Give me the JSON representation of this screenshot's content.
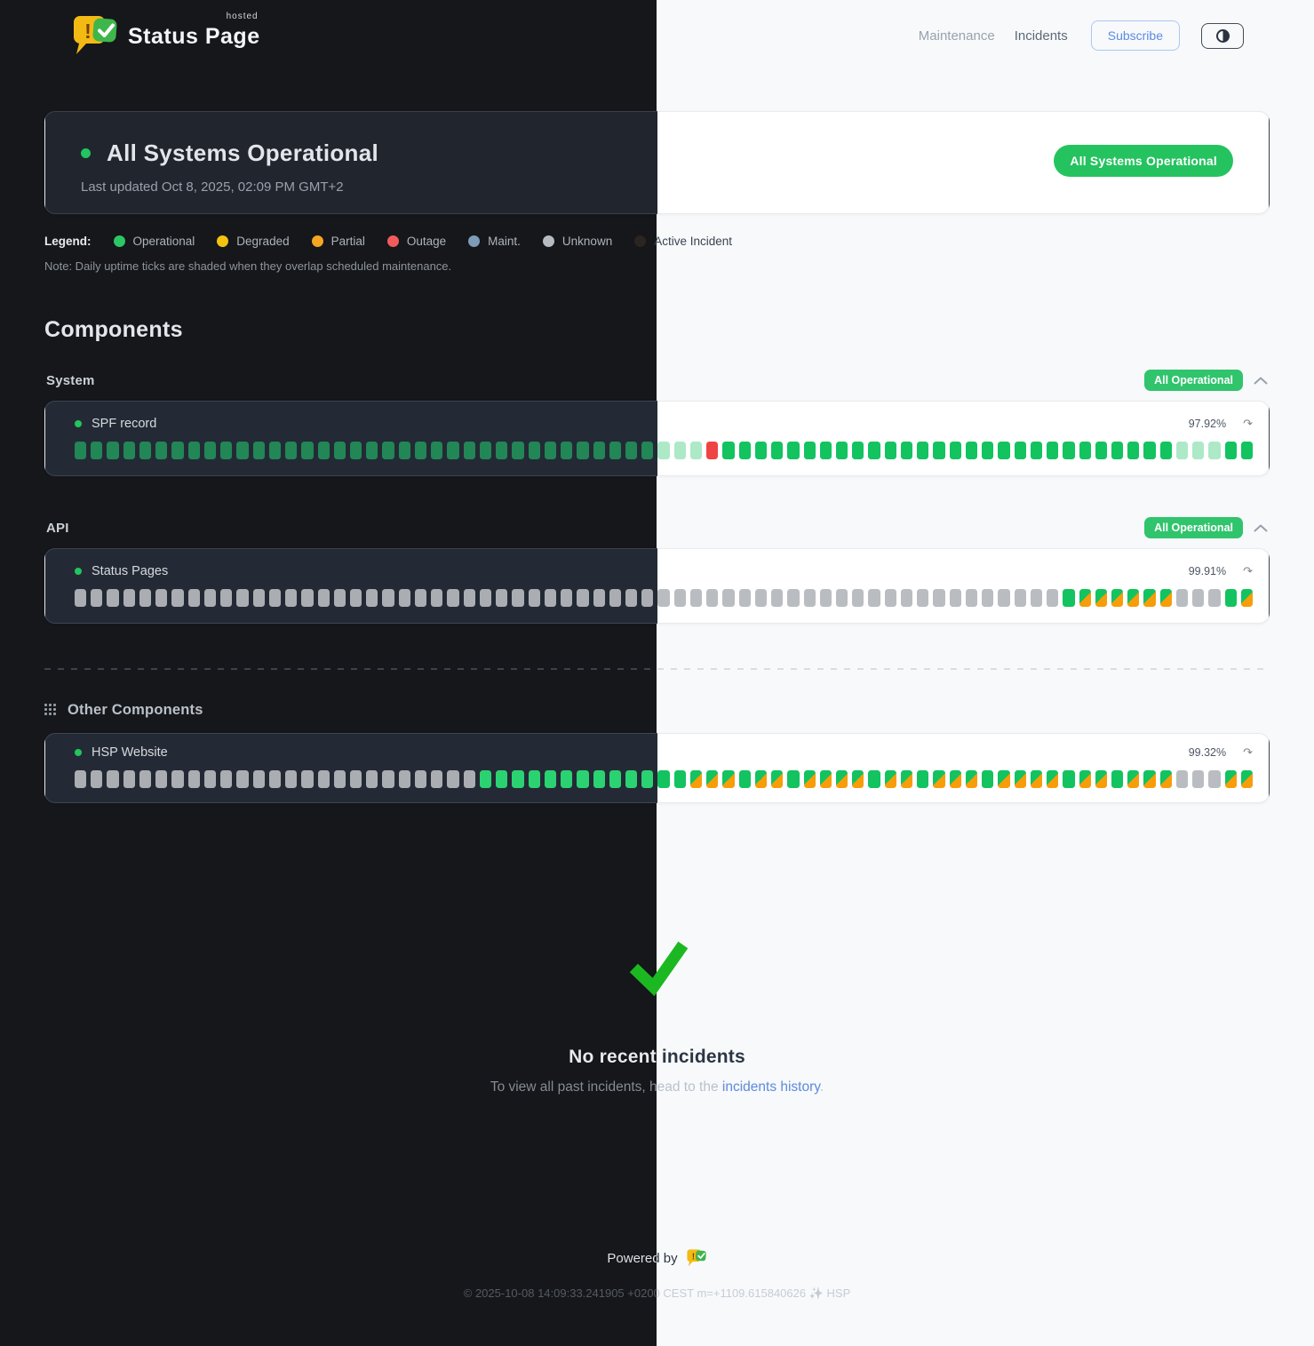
{
  "brand": {
    "name": "Status Page",
    "superscript": "hosted"
  },
  "nav": {
    "maintenance": "Maintenance",
    "incidents": "Incidents",
    "subscribe": "Subscribe"
  },
  "status": {
    "title": "All Systems Operational",
    "last_updated": "Last updated Oct 8, 2025, 02:09 PM GMT+2",
    "badge": "All Systems Operational"
  },
  "legend": {
    "label": "Legend:",
    "items": [
      {
        "label": "Operational",
        "color": "#2cc665"
      },
      {
        "label": "Degraded",
        "color": "#f2c40f"
      },
      {
        "label": "Partial",
        "color": "#f5a623"
      },
      {
        "label": "Outage",
        "color": "#f15b5b"
      },
      {
        "label": "Maint.",
        "color": "#7e9cb8"
      },
      {
        "label": "Unknown",
        "color": "#b7bcc2"
      },
      {
        "label": "Active Incident",
        "color": "#2a251f"
      }
    ],
    "note": "Note: Daily uptime ticks are shaded when they overlap scheduled maintenance."
  },
  "components": {
    "heading": "Components",
    "groups": [
      {
        "name": "System",
        "badge": "All Operational",
        "row": {
          "name": "SPF record",
          "uptime": "97.92%",
          "dark_green": "muted",
          "ticks": [
            [
              "operational",
              36
            ],
            [
              "shaded",
              3
            ],
            [
              "outage",
              1
            ],
            [
              "operational",
              28
            ],
            [
              "shaded",
              3
            ],
            [
              "operational",
              2
            ]
          ]
        }
      },
      {
        "name": "API",
        "badge": "All Operational",
        "row": {
          "name": "Status Pages",
          "uptime": "99.91%",
          "dark_green": "bright",
          "ticks": [
            [
              "unknown",
              61
            ],
            [
              "operational",
              1
            ],
            [
              "mixed",
              6
            ],
            [
              "unknown",
              3
            ],
            [
              "operational",
              1
            ],
            [
              "mixed",
              1
            ]
          ]
        }
      }
    ],
    "other": {
      "heading": "Other Components",
      "row": {
        "name": "HSP Website",
        "uptime": "99.32%",
        "dark_green": "bright",
        "ticks": [
          [
            "unknown",
            25
          ],
          [
            "operational",
            13
          ],
          [
            "mixed",
            3
          ],
          [
            "operational",
            1
          ],
          [
            "mixed",
            2
          ],
          [
            "operational",
            1
          ],
          [
            "mixed",
            4
          ],
          [
            "operational",
            1
          ],
          [
            "mixed",
            2
          ],
          [
            "operational",
            1
          ],
          [
            "mixed",
            3
          ],
          [
            "operational",
            1
          ],
          [
            "mixed",
            4
          ],
          [
            "operational",
            1
          ],
          [
            "mixed",
            2
          ],
          [
            "operational",
            1
          ],
          [
            "mixed",
            3
          ],
          [
            "unknown",
            3
          ],
          [
            "mixed",
            2
          ]
        ]
      }
    }
  },
  "incidents": {
    "title": "No recent incidents",
    "subtext_prefix": "To view all past incidents, head to the ",
    "link": "incidents history",
    "subtext_suffix": "."
  },
  "footer": {
    "powered_by": "Powered by",
    "copyright": "© 2025-10-08 14:09:33.241905 +0200 CEST m=+1109.615840626 ✨ HSP"
  },
  "palette": {
    "status_dot": "#22c55e",
    "operational": "#12c35f",
    "operational_dark_muted": "#228657",
    "operational_dark_bright": "#2bd271",
    "operational_shaded": "#ade9c6",
    "outage": "#ef4444",
    "partial": "#f79d09",
    "unknown": "#b9bdc1",
    "unknown_dark": "#aaadb2",
    "checkmark": "#1cb821",
    "badge_green": "#24c35f"
  },
  "tick_meta": {
    "total_ticks": 73,
    "dark_theme_ticks": 36
  }
}
